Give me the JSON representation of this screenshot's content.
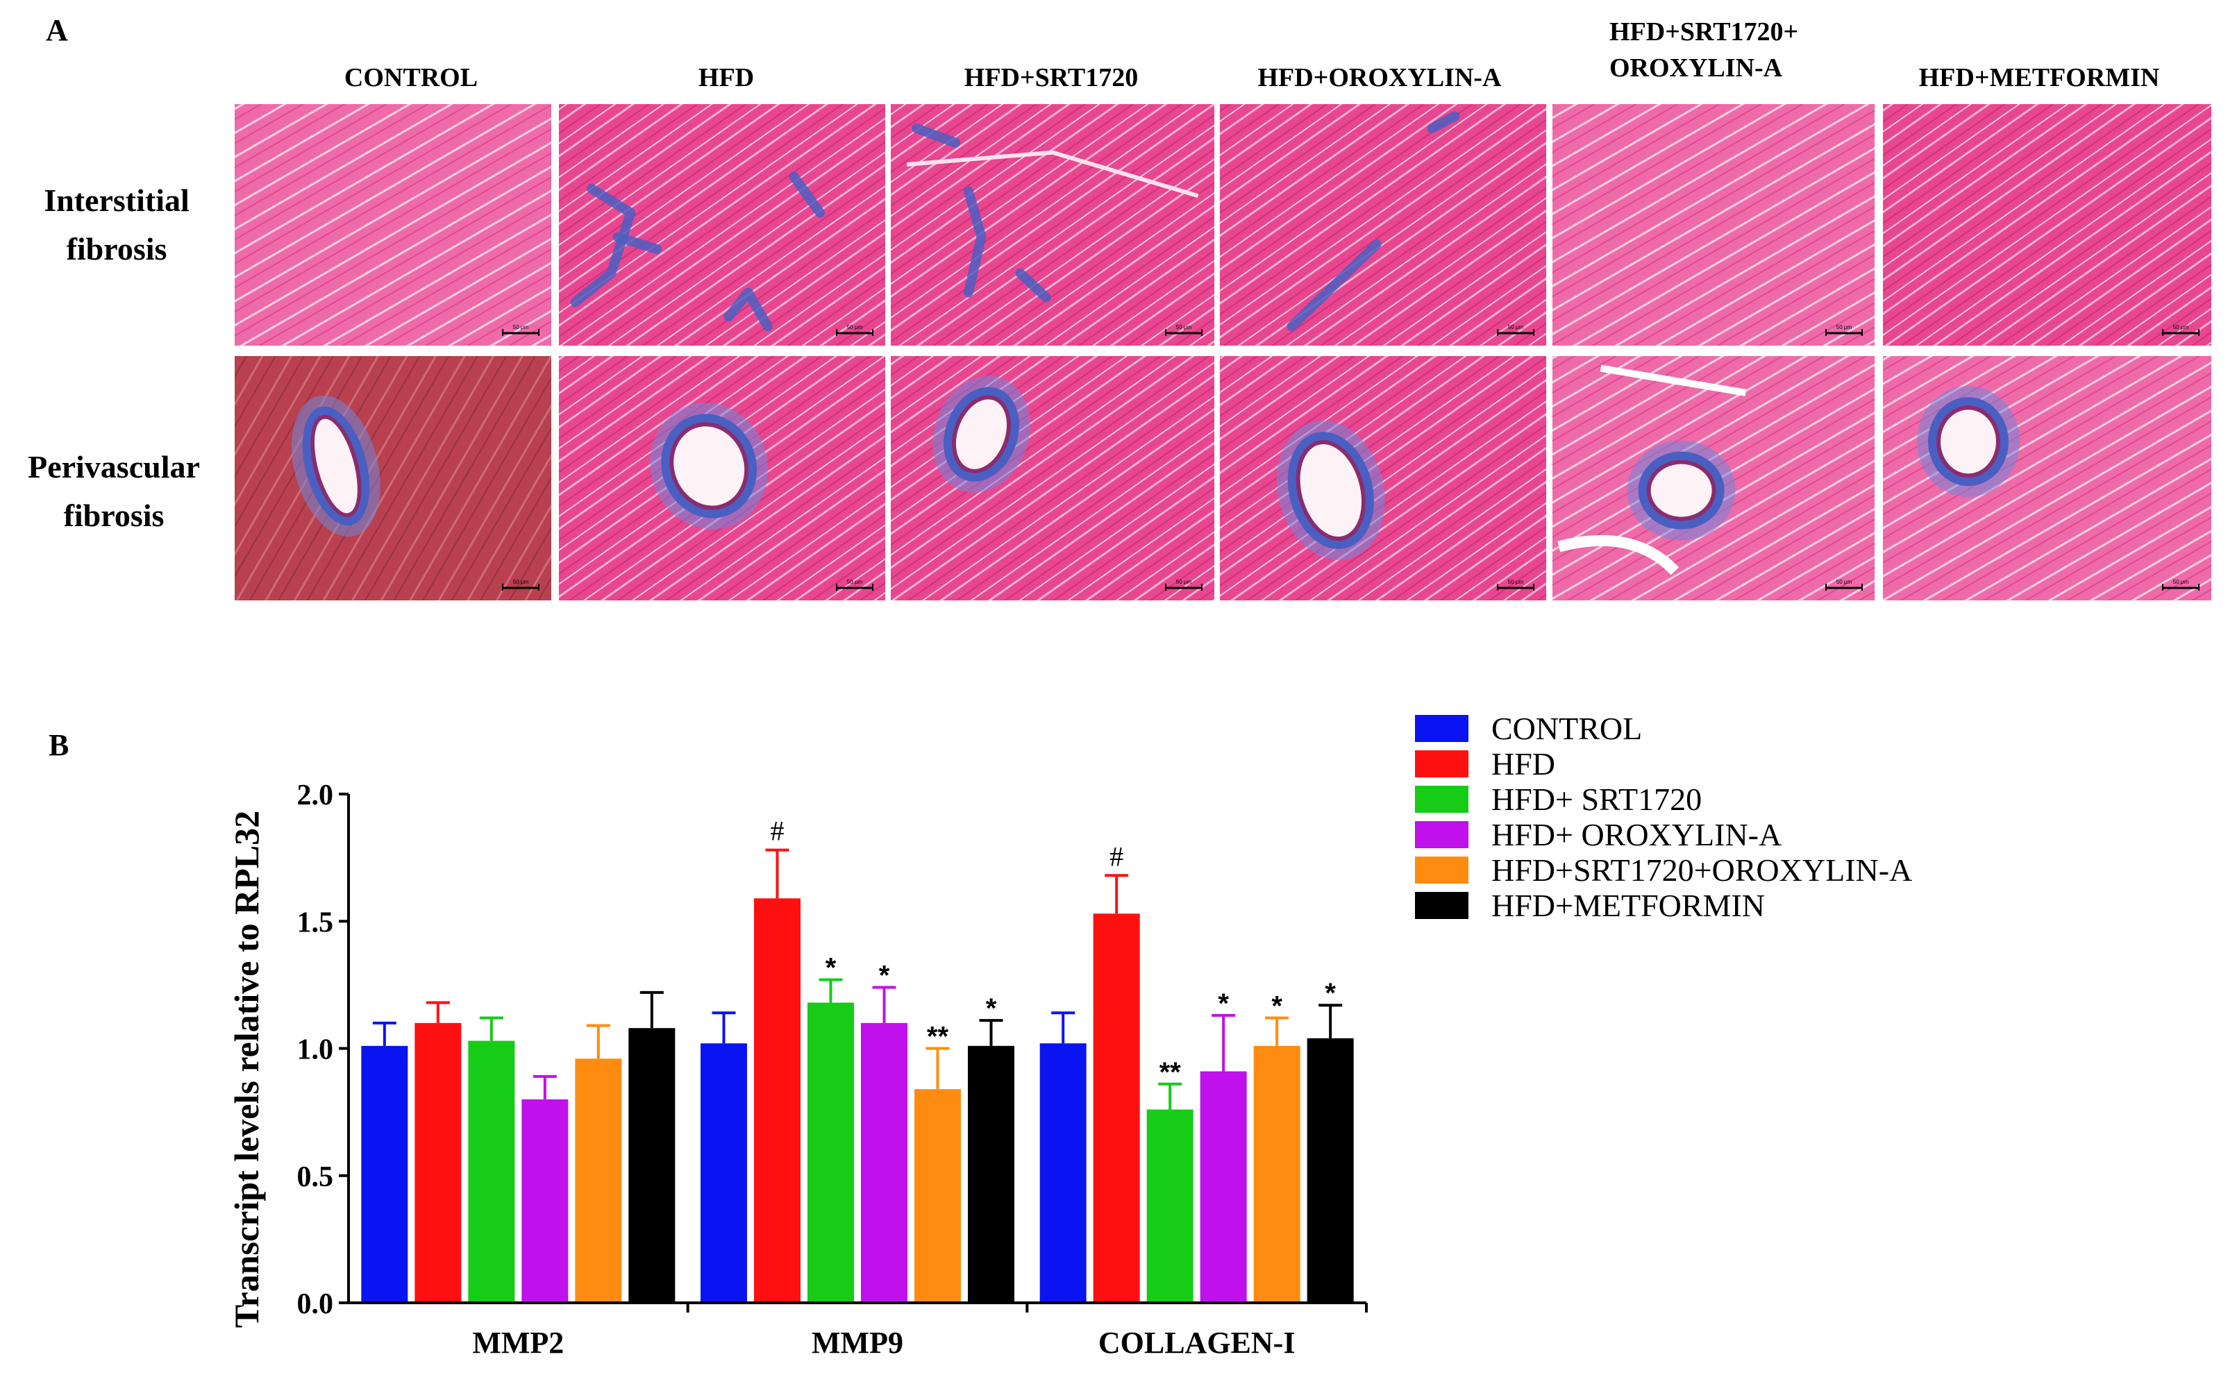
{
  "panel_a": {
    "letter": "A",
    "columns": [
      "CONTROL",
      "HFD",
      "HFD+SRT1720",
      "HFD+OROXYLIN-A",
      "HFD+SRT1720+\nOROXYLIN-A",
      "HFD+METFORMIN"
    ],
    "rows": [
      {
        "label_line1": "Interstitial",
        "label_line2": "fibrosis"
      },
      {
        "label_line1": "Perivascular",
        "label_line2": "fibrosis"
      }
    ],
    "scale_bar_text": "50 μm",
    "colors": {
      "tissue_pink": "#ea3f8c",
      "tissue_light": "#f4a7c9",
      "collagen_blue": "#4a5fc2",
      "dark_tissue": "#a83a4c"
    }
  },
  "panel_b": {
    "letter": "B"
  },
  "chart_data": {
    "type": "bar",
    "title": "",
    "ylabel": "Transcript levels relative to RPL32",
    "xlabel": "",
    "ylim": [
      0,
      2.0
    ],
    "yticks": [
      "0.0",
      "0.5",
      "1.0",
      "1.5",
      "2.0"
    ],
    "categories": [
      "MMP2",
      "MMP9",
      "COLLAGEN-I"
    ],
    "legend_position": "top-right",
    "series": [
      {
        "name": "CONTROL",
        "color": "#0a14f0",
        "values": [
          1.01,
          1.02,
          1.02
        ],
        "errors": [
          0.09,
          0.12,
          0.12
        ],
        "annotations": [
          "",
          "",
          ""
        ]
      },
      {
        "name": "HFD",
        "color": "#ff1010",
        "values": [
          1.1,
          1.59,
          1.53
        ],
        "errors": [
          0.08,
          0.19,
          0.15
        ],
        "annotations": [
          "",
          "#",
          "#"
        ]
      },
      {
        "name": "HFD+ SRT1720",
        "color": "#16cc16",
        "values": [
          1.03,
          1.18,
          0.76
        ],
        "errors": [
          0.09,
          0.09,
          0.1
        ],
        "annotations": [
          "",
          "*",
          "**"
        ]
      },
      {
        "name": "HFD+ OROXYLIN-A",
        "color": "#c010ec",
        "values": [
          0.8,
          1.1,
          0.91
        ],
        "errors": [
          0.09,
          0.14,
          0.22
        ],
        "annotations": [
          "",
          "*",
          "*"
        ]
      },
      {
        "name": "HFD+SRT1720+OROXYLIN-A",
        "color": "#ff8c10",
        "values": [
          0.96,
          0.84,
          1.01
        ],
        "errors": [
          0.13,
          0.16,
          0.11
        ],
        "annotations": [
          "",
          "**",
          "*"
        ]
      },
      {
        "name": "HFD+METFORMIN",
        "color": "#000000",
        "values": [
          1.08,
          1.01,
          1.04
        ],
        "errors": [
          0.14,
          0.1,
          0.13
        ],
        "annotations": [
          "",
          "*",
          "*"
        ]
      }
    ]
  }
}
